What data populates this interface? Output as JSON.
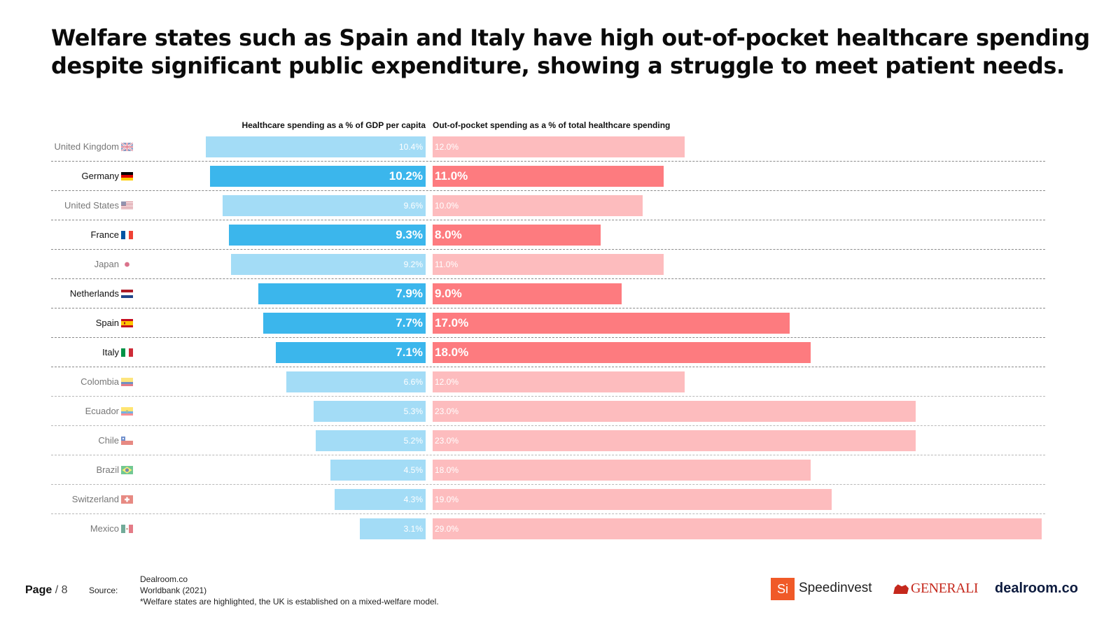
{
  "title_lines": [
    "Welfare states such as Spain and Italy have high out-of-pocket healthcare spending",
    "despite significant public expenditure, showing a struggle to meet patient needs."
  ],
  "chart_data": {
    "type": "bar",
    "orientation": "horizontal-diverging",
    "series": [
      {
        "name": "Healthcare spending as a % of GDP per capita",
        "values": [
          10.4,
          10.2,
          9.6,
          9.3,
          9.2,
          7.9,
          7.7,
          7.1,
          6.6,
          5.3,
          5.2,
          4.5,
          4.3,
          3.1
        ],
        "labels": [
          "10.4%",
          "10.2%",
          "9.6%",
          "9.3%",
          "9.2%",
          "7.9%",
          "7.7%",
          "7.1%",
          "6.6%",
          "5.3%",
          "5.2%",
          "4.5%",
          "4.3%",
          "3.1%"
        ],
        "color_highlight": "#3bb6ec",
        "color_muted": "#a3dcf6"
      },
      {
        "name": "Out-of-pocket spending as a % of total healthcare spending",
        "values": [
          12.0,
          11.0,
          10.0,
          8.0,
          11.0,
          9.0,
          17.0,
          18.0,
          12.0,
          23.0,
          23.0,
          18.0,
          19.0,
          29.0
        ],
        "labels": [
          "12.0%",
          "11.0%",
          "10.0%",
          "8.0%",
          "11.0%",
          "9.0%",
          "17.0%",
          "18.0%",
          "12.0%",
          "23.0%",
          "23.0%",
          "18.0%",
          "19.0%",
          "29.0%"
        ],
        "color_highlight": "#fd7b7f",
        "color_muted": "#fdbcbe"
      }
    ],
    "categories": [
      "United Kingdom",
      "Germany",
      "United States",
      "France",
      "Japan",
      "Netherlands",
      "Spain",
      "Italy",
      "Colombia",
      "Ecuador",
      "Chile",
      "Brazil",
      "Switzerland",
      "Mexico"
    ],
    "highlighted": [
      false,
      true,
      false,
      true,
      false,
      true,
      true,
      true,
      false,
      false,
      false,
      false,
      false,
      false
    ],
    "flags": [
      "uk-flag-icon",
      "germany-flag-icon",
      "usa-flag-icon",
      "france-flag-icon",
      "japan-flag-icon",
      "netherlands-flag-icon",
      "spain-flag-icon",
      "italy-flag-icon",
      "colombia-flag-icon",
      "ecuador-flag-icon",
      "chile-flag-icon",
      "brazil-flag-icon",
      "switzerland-flag-icon",
      "mexico-flag-icon"
    ],
    "gdp_max": 10.4,
    "oop_max": 29.0
  },
  "footer": {
    "page_label": "Page",
    "page_suffix": "/ 8",
    "source_label": "Source:",
    "source_lines": [
      "Dealroom.co",
      "Worldbank (2021)",
      "*Welfare states are highlighted, the UK is established on a mixed-welfare model."
    ]
  },
  "logos": {
    "speedinvest_badge": "Si",
    "speedinvest": "Speedinvest",
    "generali": "GENERALI",
    "dealroom": "dealroom.co"
  },
  "colors": {
    "label_highlight": "#111111",
    "label_muted": "#777777",
    "value_muted": "#ffffff"
  }
}
